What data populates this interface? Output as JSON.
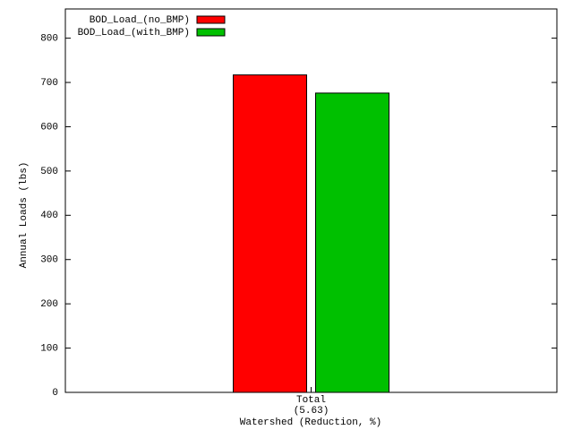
{
  "chart_data": {
    "type": "bar",
    "xlabel": "Watershed (Reduction, %)",
    "ylabel": "Annual Loads (lbs)",
    "categories": [
      "Total\n(5.63)"
    ],
    "series": [
      {
        "name": "BOD_Load_(no_BMP)",
        "color": "#ff0000",
        "values": [
          717
        ]
      },
      {
        "name": "BOD_Load_(with_BMP)",
        "color": "#00c000",
        "values": [
          676
        ]
      }
    ],
    "ylim": [
      0,
      866
    ],
    "yticks": [
      0,
      100,
      200,
      300,
      400,
      500,
      600,
      700,
      800
    ],
    "legend": "top-left"
  }
}
